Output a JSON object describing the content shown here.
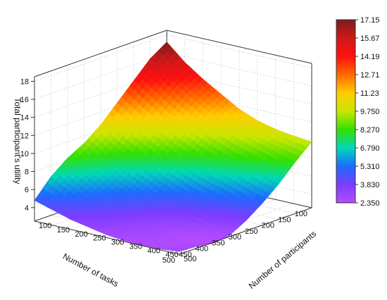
{
  "chart_data": {
    "type": "surface",
    "zlabel": "Total participant's utility",
    "xlabel": "Number of tasks",
    "ylabel": "Number of participants",
    "x_ticks": [
      "100",
      "150",
      "200",
      "250",
      "300",
      "350",
      "400",
      "450",
      "500"
    ],
    "y_ticks": [
      "100",
      "150",
      "200",
      "250",
      "300",
      "350",
      "400",
      "450",
      "500"
    ],
    "z_ticks": [
      "4",
      "6",
      "8",
      "10",
      "12",
      "14",
      "16",
      "18"
    ],
    "zlim": [
      2.5,
      18.5
    ],
    "x": [
      100,
      150,
      200,
      250,
      300,
      350,
      400,
      450,
      500
    ],
    "y": [
      100,
      150,
      200,
      250,
      300,
      350,
      400,
      450,
      500
    ],
    "z": [
      [
        17.2,
        15.4,
        14.0,
        12.8,
        11.6,
        10.8,
        10.3,
        10.0,
        9.8
      ],
      [
        16.0,
        14.4,
        13.0,
        11.8,
        10.8,
        10.0,
        9.4,
        8.8,
        8.2
      ],
      [
        14.2,
        12.8,
        11.4,
        10.2,
        9.2,
        8.4,
        7.8,
        7.1,
        6.4
      ],
      [
        12.4,
        11.0,
        9.8,
        8.6,
        7.6,
        6.8,
        6.2,
        5.5,
        4.9
      ],
      [
        10.6,
        9.2,
        8.0,
        7.0,
        6.0,
        5.2,
        4.6,
        4.0,
        3.6
      ],
      [
        9.2,
        7.8,
        6.6,
        5.6,
        4.6,
        3.8,
        3.2,
        2.8,
        2.6
      ],
      [
        8.2,
        6.8,
        5.6,
        4.6,
        3.8,
        3.0,
        2.6,
        2.4,
        2.4
      ],
      [
        6.8,
        5.6,
        4.6,
        3.8,
        3.2,
        2.8,
        2.6,
        2.5,
        2.7
      ],
      [
        4.8,
        4.2,
        3.6,
        3.2,
        2.8,
        2.6,
        2.5,
        2.6,
        2.8
      ]
    ],
    "colorbar": {
      "labels": [
        "17.15",
        "15.67",
        "14.19",
        "12.71",
        "11.23",
        "9.750",
        "8.270",
        "6.790",
        "5.310",
        "3.830",
        "2.350"
      ],
      "min": 2.35,
      "max": 17.15,
      "colors": [
        "#7a1d1d",
        "#d01818",
        "#ff1010",
        "#ff6a00",
        "#ffcc00",
        "#c8e600",
        "#34e000",
        "#00d8b8",
        "#1d6bff",
        "#7c3cff",
        "#b54cff"
      ]
    }
  }
}
